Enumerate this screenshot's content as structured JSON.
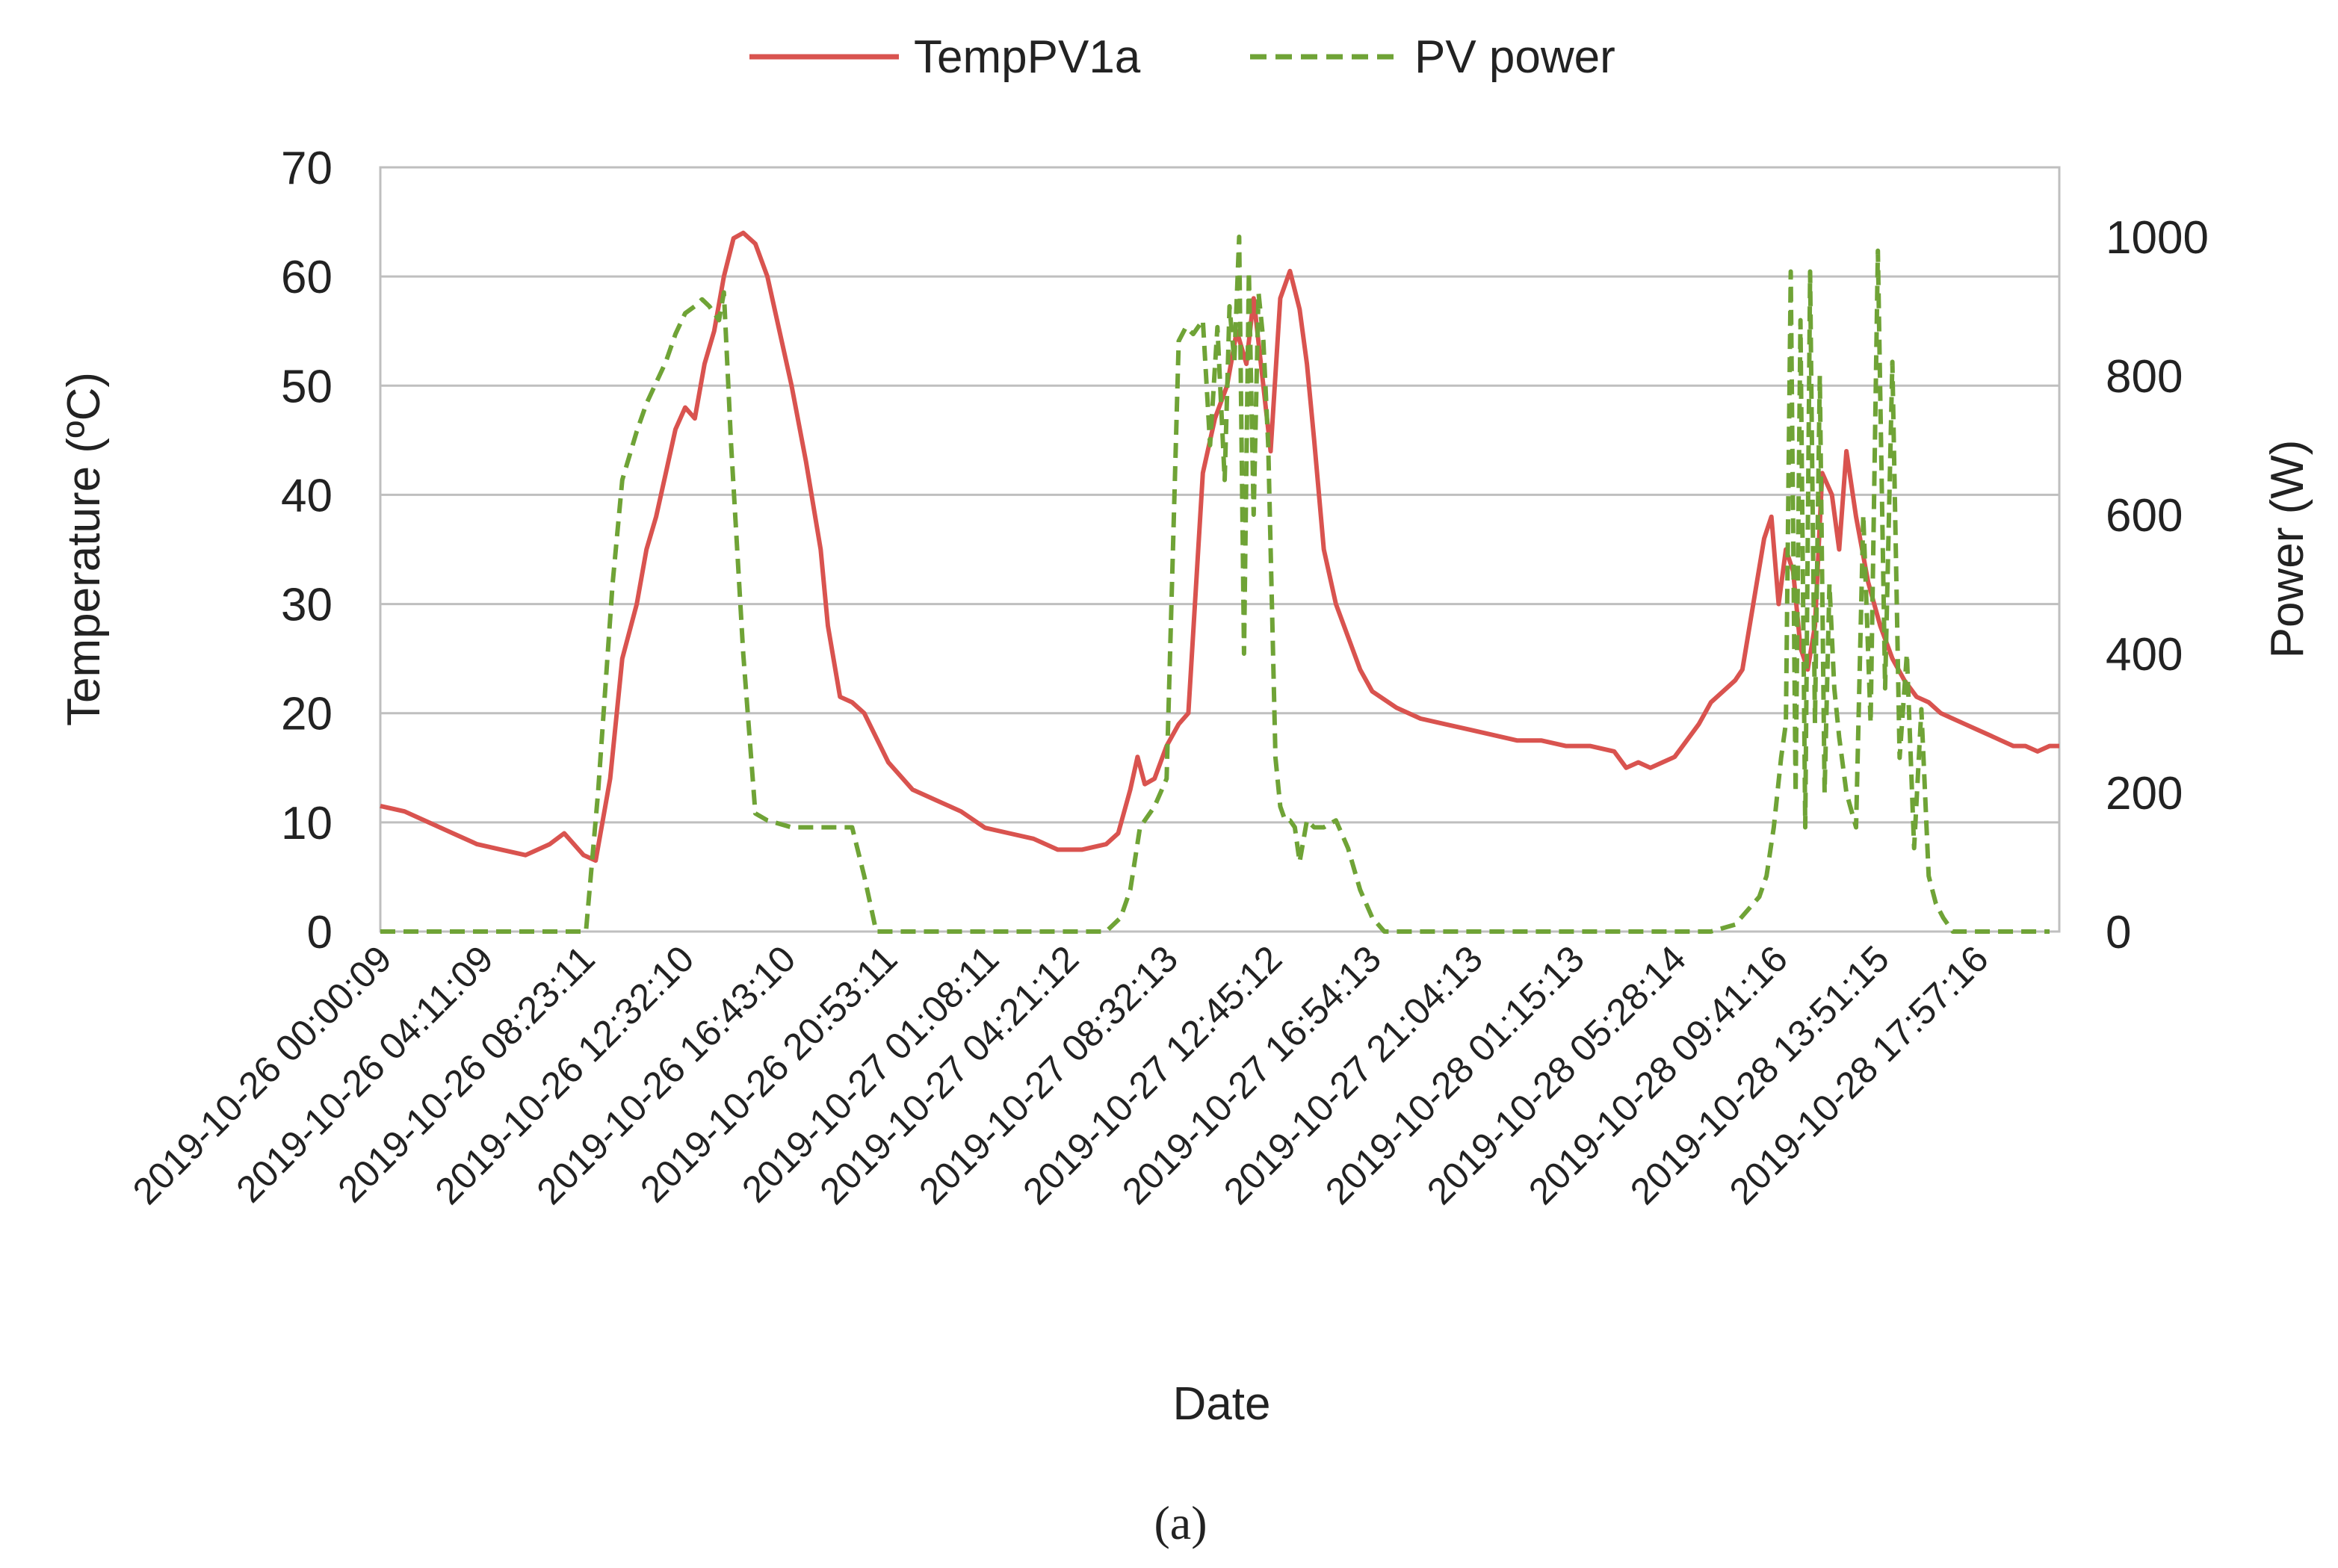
{
  "chart_data": {
    "type": "line",
    "title": "",
    "xlabel": "Date",
    "ylabel": "Temperature (ºC)",
    "y2label": "Power (W)",
    "ylim": [
      0,
      70
    ],
    "y2lim": [
      0,
      1100
    ],
    "y_ticks": [
      0,
      10,
      20,
      30,
      40,
      50,
      60,
      70
    ],
    "y2_ticks": [
      0,
      200,
      400,
      600,
      800,
      1000
    ],
    "grid": true,
    "legend_position": "top-center",
    "x_range_hours": [
      0,
      69.4
    ],
    "x_tick_hours": [
      0,
      4.2,
      8.4,
      12.5,
      16.7,
      20.9,
      25.1,
      28.4,
      32.5,
      36.8,
      40.9,
      45.1,
      49.3,
      53.5,
      57.7,
      61.9,
      66.0
    ],
    "categories": [
      "2019-10-26 00:00:09",
      "2019-10-26 04:11:09",
      "2019-10-26 08:23:11",
      "2019-10-26 12:32:10",
      "2019-10-26 16:43:10",
      "2019-10-26 20:53:11",
      "2019-10-27 01:08:11",
      "2019-10-27 04:21:12",
      "2019-10-27 08:32:13",
      "2019-10-27 12:45:12",
      "2019-10-27 16:54:13",
      "2019-10-27 21:04:13",
      "2019-10-28 01:15:13",
      "2019-10-28 05:28:14",
      "2019-10-28 09:41:16",
      "2019-10-28 13:51:15",
      "2019-10-28 17:57:16"
    ],
    "series": [
      {
        "name": "TempPV1a",
        "axis": "left",
        "color": "#d9534f",
        "style": "solid",
        "x": [
          0,
          1.0,
          2.0,
          3.0,
          4.0,
          5.0,
          6.0,
          7.0,
          7.6,
          8.4,
          8.9,
          9.5,
          10.0,
          10.6,
          11.0,
          11.4,
          11.8,
          12.2,
          12.6,
          13.0,
          13.4,
          13.8,
          14.2,
          14.6,
          15.0,
          15.5,
          16.0,
          16.5,
          17.0,
          17.6,
          18.2,
          18.5,
          19.0,
          19.5,
          20.0,
          21.0,
          22.0,
          23.0,
          24.0,
          25.0,
          26.0,
          27.0,
          28.0,
          29.0,
          30.0,
          30.5,
          31.0,
          31.3,
          31.6,
          32.0,
          32.5,
          33.0,
          33.4,
          34.0,
          34.5,
          35.0,
          35.4,
          35.8,
          36.1,
          36.4,
          36.8,
          37.2,
          37.6,
          38.0,
          38.3,
          38.6,
          39.0,
          39.5,
          40.0,
          40.5,
          41.0,
          42.0,
          43.0,
          44.0,
          45.0,
          46.0,
          47.0,
          48.0,
          49.0,
          50.0,
          51.0,
          51.5,
          52.0,
          52.5,
          53.0,
          53.5,
          54.0,
          54.5,
          55.0,
          55.5,
          56.0,
          56.3,
          56.6,
          56.9,
          57.2,
          57.5,
          57.8,
          58.1,
          58.4,
          58.7,
          59.0,
          59.3,
          59.6,
          60.0,
          60.3,
          60.6,
          61.0,
          61.5,
          62.0,
          62.5,
          63.0,
          63.5,
          64.0,
          64.5,
          65.0,
          65.5,
          66.0,
          66.5,
          67.0,
          67.5,
          68.0,
          68.5,
          69.0,
          69.4
        ],
        "values": [
          11.5,
          11.0,
          10.0,
          9.0,
          8.0,
          7.5,
          7.0,
          8.0,
          9.0,
          7.0,
          6.5,
          14.0,
          25.0,
          30.0,
          35.0,
          38.0,
          42.0,
          46.0,
          48.0,
          47.0,
          52.0,
          55.0,
          60.0,
          63.5,
          64.0,
          63.0,
          60.0,
          55.0,
          50.0,
          43.0,
          35.0,
          28.0,
          21.5,
          21.0,
          20.0,
          15.5,
          13.0,
          12.0,
          11.0,
          9.5,
          9.0,
          8.5,
          7.5,
          7.5,
          8.0,
          9.0,
          13.0,
          16.0,
          13.5,
          14.0,
          17.0,
          19.0,
          20.0,
          42.0,
          47.0,
          50.0,
          55.0,
          52.0,
          58.0,
          52.0,
          44.0,
          58.0,
          60.5,
          57.0,
          52.0,
          45.0,
          35.0,
          30.0,
          27.0,
          24.0,
          22.0,
          20.5,
          19.5,
          19.0,
          18.5,
          18.0,
          17.5,
          17.5,
          17.0,
          17.0,
          16.5,
          15.0,
          15.5,
          15.0,
          15.5,
          16.0,
          17.5,
          19.0,
          21.0,
          22.0,
          23.0,
          24.0,
          28.0,
          32.0,
          36.0,
          38.0,
          30.0,
          35.0,
          33.0,
          26.0,
          24.0,
          28.0,
          42.0,
          40.0,
          35.0,
          44.0,
          38.0,
          32.0,
          28.0,
          25.0,
          23.0,
          21.5,
          21.0,
          20.0,
          19.5,
          19.0,
          18.5,
          18.0,
          17.5,
          17.0,
          17.0,
          16.5,
          17.0,
          17.0
        ]
      },
      {
        "name": "PV power",
        "axis": "right",
        "color": "#6fa336",
        "style": "dashed",
        "x": [
          0,
          8.0,
          8.5,
          9.0,
          9.6,
          10.0,
          10.6,
          11.0,
          11.4,
          11.8,
          12.2,
          12.6,
          13.0,
          13.3,
          13.6,
          14.0,
          14.2,
          14.5,
          15.0,
          15.5,
          16.0,
          17.0,
          18.0,
          18.6,
          19.0,
          19.5,
          20.0,
          20.5,
          21.0,
          25.0,
          29.0,
          30.0,
          30.6,
          31.0,
          31.4,
          32.0,
          32.5,
          33.0,
          33.3,
          33.6,
          34.0,
          34.3,
          34.6,
          34.9,
          35.1,
          35.3,
          35.5,
          35.7,
          35.9,
          36.1,
          36.3,
          36.5,
          36.7,
          37.0,
          37.2,
          37.4,
          37.6,
          37.8,
          38.0,
          38.3,
          38.6,
          39.0,
          39.5,
          40.0,
          40.5,
          41.0,
          41.5,
          42.0,
          42.5,
          43.0,
          47.0,
          52.0,
          55.0,
          56.0,
          56.5,
          57.0,
          57.3,
          57.6,
          57.9,
          58.1,
          58.3,
          58.5,
          58.7,
          58.9,
          59.1,
          59.3,
          59.5,
          59.7,
          59.9,
          60.1,
          60.3,
          60.6,
          61.0,
          61.3,
          61.6,
          61.9,
          62.2,
          62.5,
          62.8,
          63.1,
          63.4,
          63.7,
          64.0,
          64.3,
          64.6,
          65.0,
          65.5,
          66.0,
          66.5,
          67.0,
          67.5,
          68.0,
          69.0
        ],
        "values": [
          0,
          0,
          0,
          200,
          500,
          650,
          720,
          760,
          790,
          820,
          860,
          890,
          900,
          910,
          900,
          880,
          920,
          700,
          400,
          170,
          160,
          150,
          150,
          150,
          150,
          150,
          80,
          0,
          0,
          0,
          0,
          0,
          20,
          60,
          150,
          180,
          220,
          850,
          870,
          860,
          880,
          700,
          870,
          650,
          900,
          820,
          1000,
          400,
          950,
          600,
          920,
          850,
          700,
          250,
          180,
          160,
          160,
          150,
          100,
          160,
          150,
          150,
          160,
          120,
          60,
          20,
          0,
          0,
          0,
          0,
          0,
          0,
          0,
          10,
          30,
          50,
          80,
          150,
          250,
          300,
          950,
          200,
          880,
          150,
          950,
          300,
          800,
          200,
          500,
          350,
          280,
          200,
          150,
          600,
          300,
          980,
          350,
          820,
          250,
          400,
          120,
          320,
          80,
          40,
          20,
          0,
          0,
          0,
          0,
          0,
          0,
          0,
          0
        ]
      }
    ]
  },
  "caption": "(a)"
}
